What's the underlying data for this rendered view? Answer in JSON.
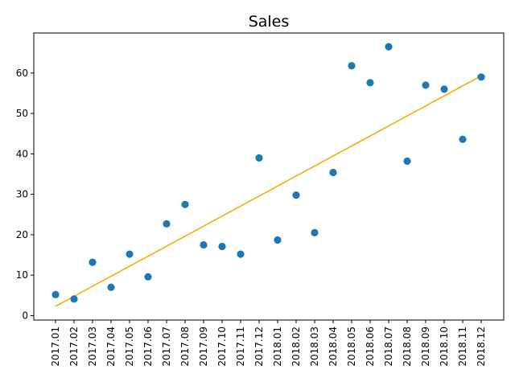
{
  "chart_data": {
    "type": "scatter",
    "title": "Sales",
    "xlabel": "",
    "ylabel": "",
    "categories": [
      "2017.01",
      "2017.02",
      "2017.03",
      "2017.04",
      "2017.05",
      "2017.06",
      "2017.07",
      "2017.08",
      "2017.09",
      "2017.10",
      "2017.11",
      "2017.12",
      "2018.01",
      "2018.02",
      "2018.03",
      "2018.04",
      "2018.05",
      "2018.06",
      "2018.07",
      "2018.08",
      "2018.09",
      "2018.10",
      "2018.11",
      "2018.12"
    ],
    "series": [
      {
        "values": [
          5.2,
          4.1,
          13.2,
          7.0,
          15.2,
          9.6,
          22.7,
          27.5,
          17.5,
          17.1,
          15.2,
          39.0,
          18.7,
          29.8,
          20.5,
          35.4,
          61.8,
          57.6,
          66.5,
          38.2,
          57.0,
          56.0,
          43.6,
          59.0
        ],
        "color": "#1f77b4"
      }
    ],
    "trend_line": {
      "start": 2.3,
      "end": 59.3,
      "color": "#ffa500"
    },
    "yticks": [
      0,
      10,
      20,
      30,
      40,
      50,
      60
    ],
    "ylim": [
      -1.1,
      69.9
    ],
    "grid": false,
    "legend": "none"
  }
}
